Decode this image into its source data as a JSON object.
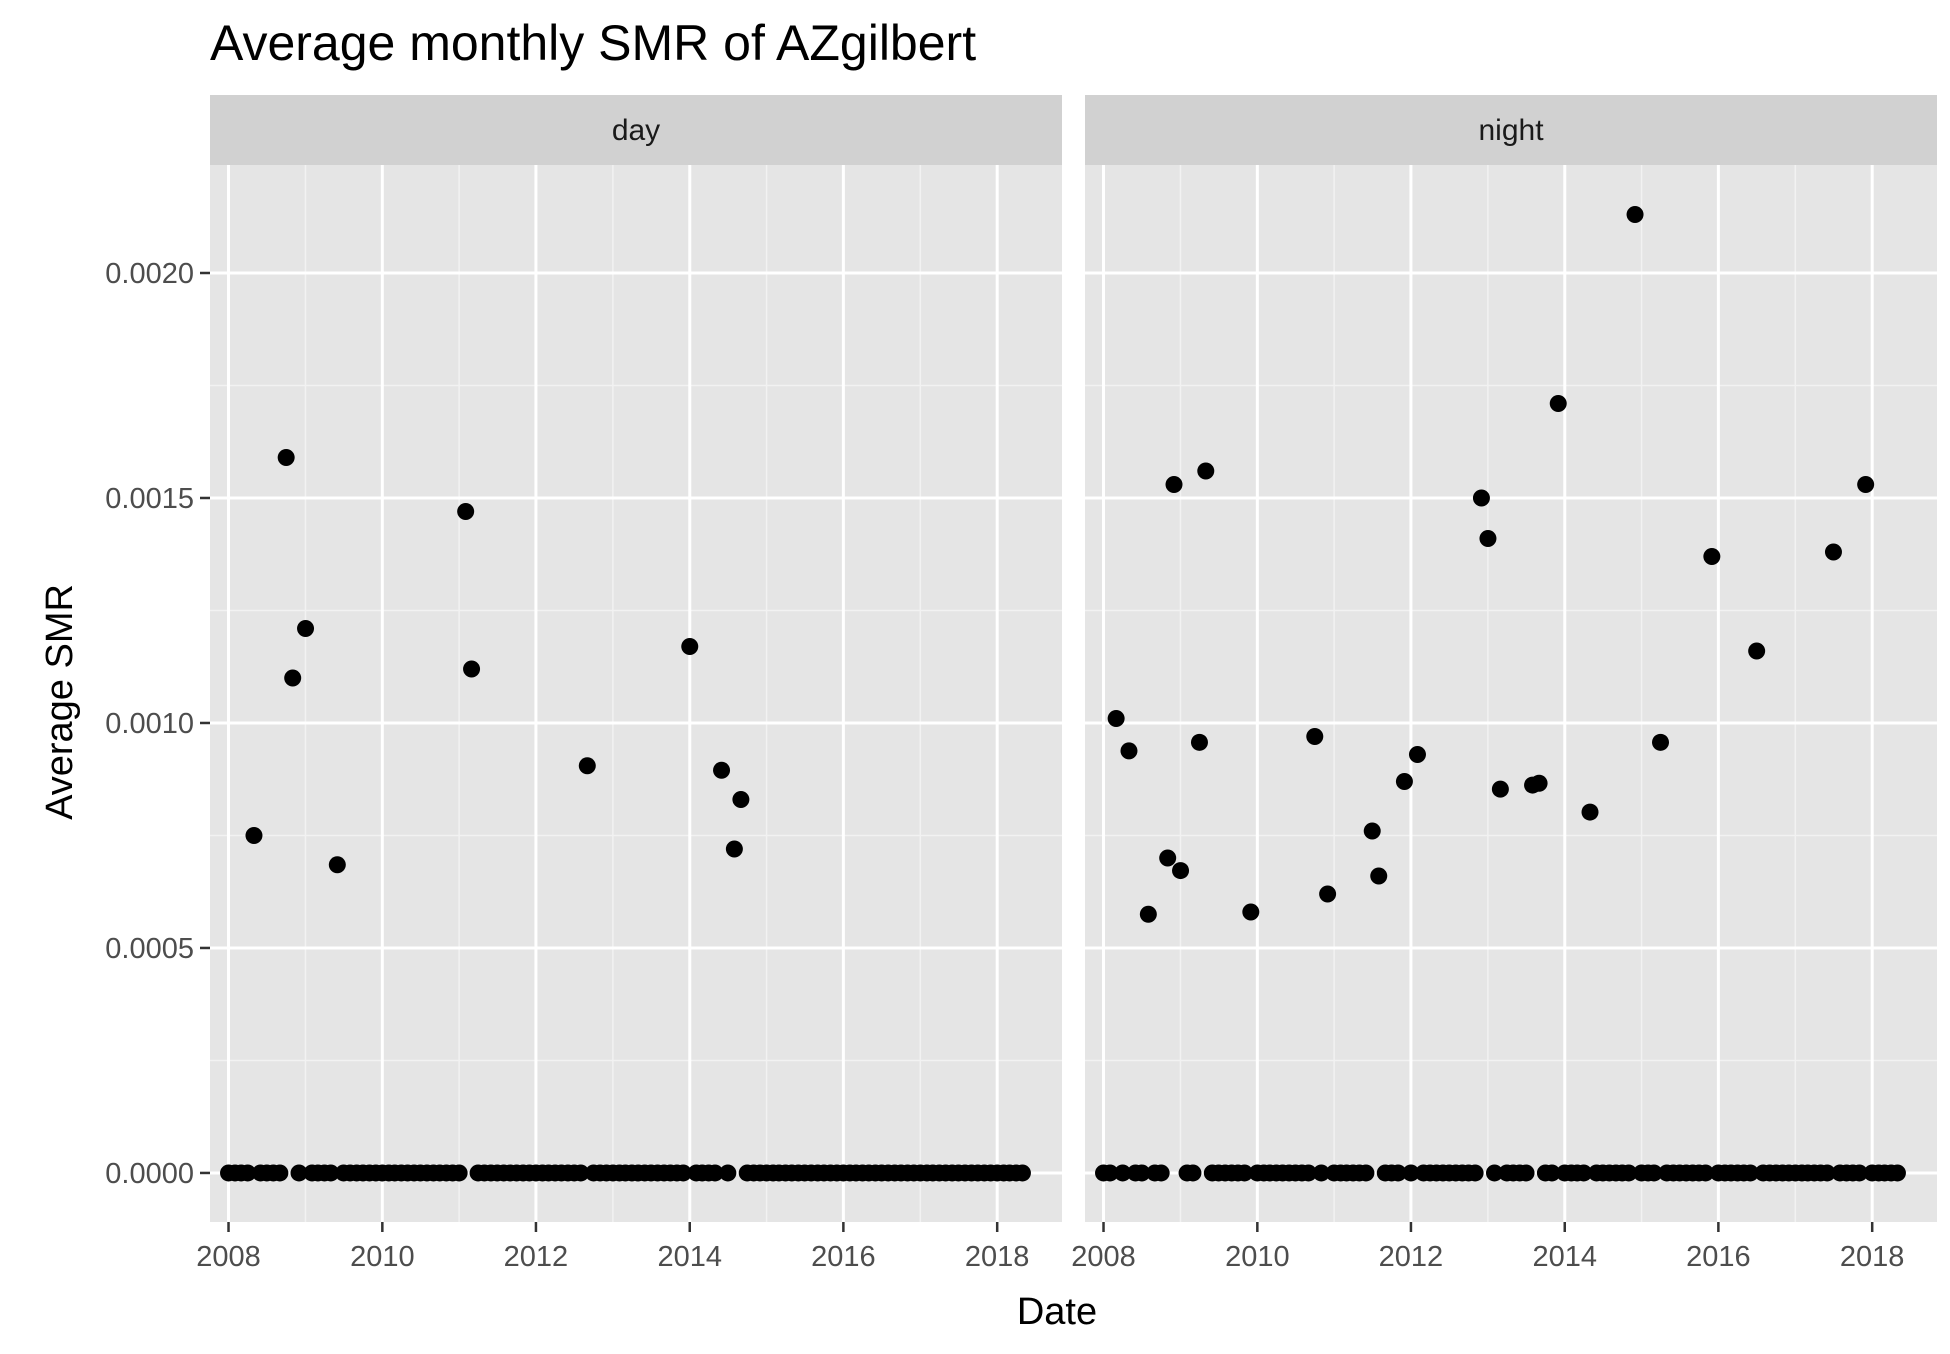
{
  "chart_data": {
    "type": "scatter",
    "title": "Average monthly SMR of AZgilbert",
    "xlabel": "Date",
    "ylabel": "Average SMR",
    "x_ticks": [
      "2008",
      "2010",
      "2012",
      "2014",
      "2016",
      "2018"
    ],
    "y_ticks": [
      "0.0000",
      "0.0005",
      "0.0010",
      "0.0015",
      "0.0020"
    ],
    "xlim": [
      "2007-10-05",
      "2018-11-05"
    ],
    "ylim": [
      -0.000109,
      0.00224
    ],
    "grid": true,
    "point_color": "#000000",
    "panel_background": "#e5e5e5",
    "strip_background": "#d1d1d1",
    "facets": [
      {
        "label": "day",
        "zero_months": {
          "start": "2008-01",
          "end": "2018-05"
        },
        "points": [
          {
            "x": "2008-05",
            "y": 0.00075
          },
          {
            "x": "2008-10",
            "y": 0.00159
          },
          {
            "x": "2008-11",
            "y": 0.0011
          },
          {
            "x": "2009-01",
            "y": 0.00121
          },
          {
            "x": "2009-06",
            "y": 0.000685
          },
          {
            "x": "2011-02",
            "y": 0.00147
          },
          {
            "x": "2011-03",
            "y": 0.00112
          },
          {
            "x": "2012-09",
            "y": 0.000905
          },
          {
            "x": "2014-01",
            "y": 0.00117
          },
          {
            "x": "2014-06",
            "y": 0.000895
          },
          {
            "x": "2014-08",
            "y": 0.00072
          },
          {
            "x": "2014-09",
            "y": 0.00083
          }
        ]
      },
      {
        "label": "night",
        "zero_months": {
          "start": "2008-01",
          "end": "2018-05"
        },
        "points": [
          {
            "x": "2008-03",
            "y": 0.00101
          },
          {
            "x": "2008-05",
            "y": 0.000938
          },
          {
            "x": "2008-08",
            "y": 0.000575
          },
          {
            "x": "2008-11",
            "y": 0.0007
          },
          {
            "x": "2008-12",
            "y": 0.00153
          },
          {
            "x": "2009-01",
            "y": 0.000672
          },
          {
            "x": "2009-04",
            "y": 0.000957
          },
          {
            "x": "2009-05",
            "y": 0.00156
          },
          {
            "x": "2009-12",
            "y": 0.00058
          },
          {
            "x": "2010-10",
            "y": 0.00097
          },
          {
            "x": "2010-12",
            "y": 0.00062
          },
          {
            "x": "2011-07",
            "y": 0.00076
          },
          {
            "x": "2011-08",
            "y": 0.00066
          },
          {
            "x": "2011-12",
            "y": 0.00087
          },
          {
            "x": "2012-02",
            "y": 0.00093
          },
          {
            "x": "2012-12",
            "y": 0.0015
          },
          {
            "x": "2013-01",
            "y": 0.00141
          },
          {
            "x": "2013-03",
            "y": 0.000853
          },
          {
            "x": "2013-08",
            "y": 0.000862
          },
          {
            "x": "2013-09",
            "y": 0.000866
          },
          {
            "x": "2013-12",
            "y": 0.00171
          },
          {
            "x": "2014-05",
            "y": 0.000802
          },
          {
            "x": "2014-12",
            "y": 0.00213
          },
          {
            "x": "2015-04",
            "y": 0.000957
          },
          {
            "x": "2015-12",
            "y": 0.00137
          },
          {
            "x": "2016-07",
            "y": 0.00116
          },
          {
            "x": "2017-07",
            "y": 0.00138
          },
          {
            "x": "2017-12",
            "y": 0.00153
          }
        ]
      }
    ]
  }
}
